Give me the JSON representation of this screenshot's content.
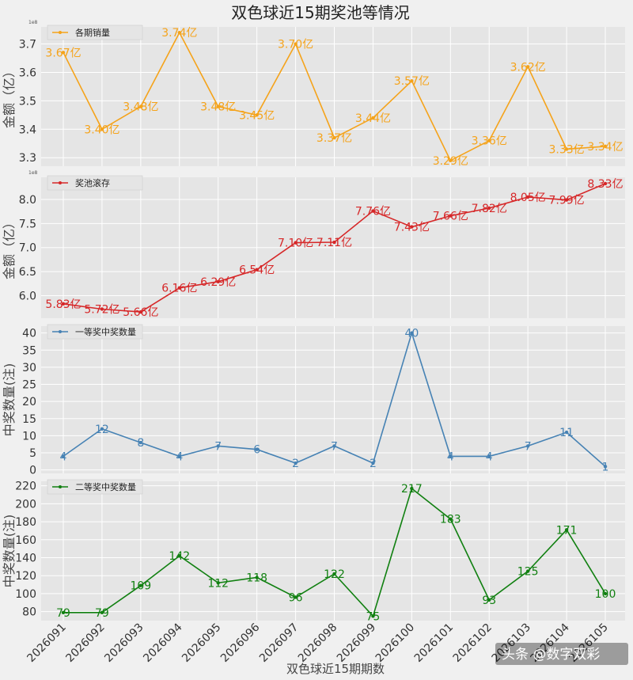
{
  "chart_data": {
    "type": "line",
    "title": "双色球近15期奖池等情况",
    "xlabel": "双色球近15期期数",
    "categories": [
      "2026091",
      "2026092",
      "2026093",
      "2026094",
      "2026095",
      "2026096",
      "2026097",
      "2026098",
      "2026099",
      "2026100",
      "2026101",
      "2026102",
      "2026103",
      "2026104",
      "2026105"
    ],
    "grid": true,
    "panels": [
      {
        "series": [
          {
            "name": "各期销量",
            "values": [
              3.67,
              3.4,
              3.48,
              3.74,
              3.48,
              3.45,
              3.7,
              3.37,
              3.44,
              3.57,
              3.29,
              3.36,
              3.62,
              3.33,
              3.34
            ],
            "color": "#f5a31a"
          }
        ],
        "data_labels": [
          "3.67亿",
          "3.40亿",
          "3.48亿",
          "3.74亿",
          "3.48亿",
          "3.45亿",
          "3.70亿",
          "3.37亿",
          "3.44亿",
          "3.57亿",
          "3.29亿",
          "3.36亿",
          "3.62亿",
          "3.33亿",
          "3.34亿"
        ],
        "ylabel": "金额（亿）",
        "yticks": [
          "3.3",
          "3.4",
          "3.5",
          "3.6",
          "3.7"
        ],
        "ylim": [
          3.27,
          3.76
        ],
        "exponent": "1e8",
        "legend": "top-left"
      },
      {
        "series": [
          {
            "name": "奖池滚存",
            "values": [
              5.83,
              5.72,
              5.66,
              6.16,
              6.29,
              6.54,
              7.1,
              7.11,
              7.76,
              7.43,
              7.66,
              7.82,
              8.05,
              7.99,
              8.33
            ],
            "color": "#d62728"
          }
        ],
        "data_labels": [
          "5.83亿",
          "5.72亿",
          "5.66亿",
          "6.16亿",
          "6.29亿",
          "6.54亿",
          "7.10亿",
          "7.11亿",
          "7.76亿",
          "7.43亿",
          "7.66亿",
          "7.82亿",
          "8.05亿",
          "7.99亿",
          "8.33亿"
        ],
        "ylabel": "金额（亿）",
        "yticks": [
          "6.0",
          "6.5",
          "7.0",
          "7.5",
          "8.0"
        ],
        "ylim": [
          5.53,
          8.46
        ],
        "exponent": "1e8",
        "legend": "top-left"
      },
      {
        "series": [
          {
            "name": "一等奖中奖数量",
            "values": [
              4,
              12,
              8,
              4,
              7,
              6,
              2,
              7,
              2,
              40,
              4,
              4,
              7,
              11,
              1
            ],
            "color": "#4682b4"
          }
        ],
        "data_labels": [
          "4",
          "12",
          "8",
          "4",
          "7",
          "6",
          "2",
          "7",
          "2",
          "40",
          "4",
          "4",
          "7",
          "11",
          "1"
        ],
        "ylabel": "中奖数量(注)",
        "yticks": [
          "0",
          "5",
          "10",
          "15",
          "20",
          "25",
          "30",
          "35",
          "40"
        ],
        "ylim": [
          -1,
          42
        ],
        "legend": "top-left"
      },
      {
        "series": [
          {
            "name": "二等奖中奖数量",
            "values": [
              79,
              79,
              109,
              142,
              112,
              118,
              96,
              122,
              75,
              217,
              183,
              93,
              125,
              171,
              100
            ],
            "color": "#118011"
          }
        ],
        "data_labels": [
          "79",
          "79",
          "109",
          "142",
          "112",
          "118",
          "96",
          "122",
          "75",
          "217",
          "183",
          "93",
          "125",
          "171",
          "100"
        ],
        "ylabel": "中奖数量(注)",
        "yticks": [
          "80",
          "100",
          "120",
          "140",
          "160",
          "180",
          "200",
          "220"
        ],
        "ylim": [
          70,
          225
        ],
        "legend": "top-left"
      }
    ]
  },
  "watermark": "头条 @数字双彩"
}
